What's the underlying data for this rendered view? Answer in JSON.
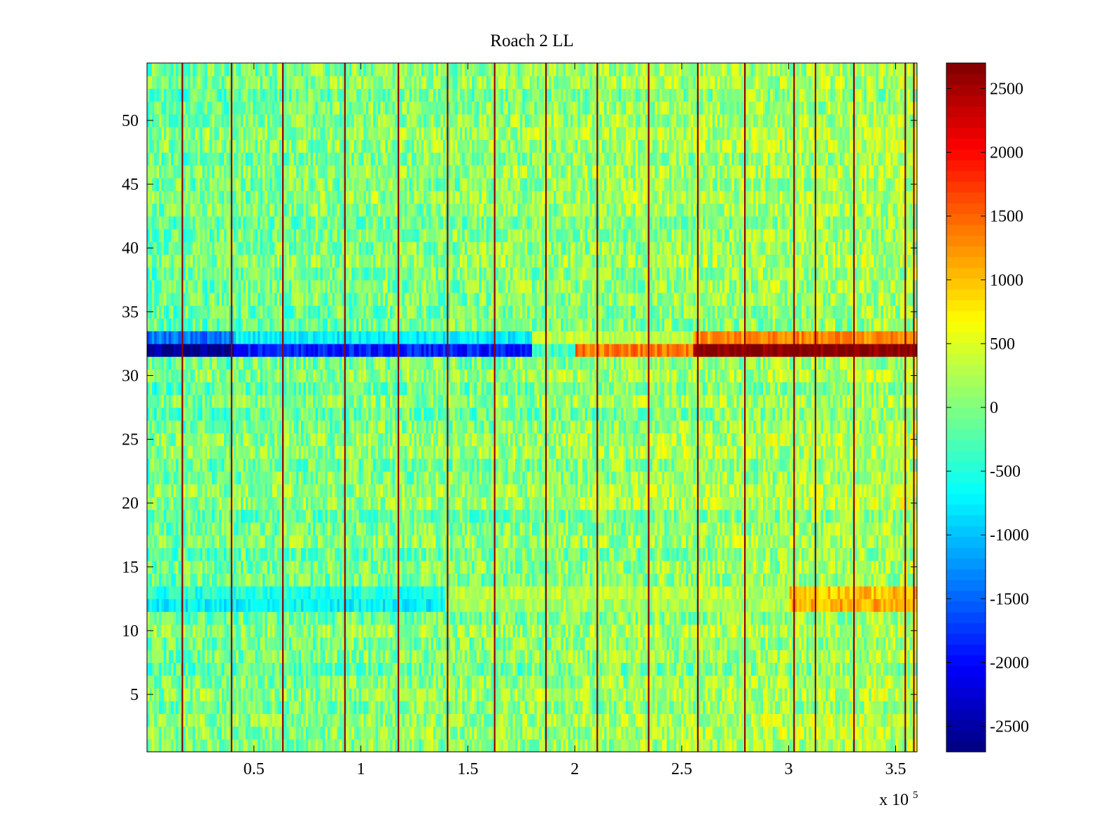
{
  "chart_data": {
    "type": "heatmap",
    "title": "Roach 2 LL",
    "xlabel": "",
    "ylabel": "",
    "x_multiplier_label": {
      "base": "x 10",
      "exponent": "5"
    },
    "xlim": [
      0,
      3.6
    ],
    "ylim": [
      0.5,
      54.5
    ],
    "x_ticks": [
      {
        "value": 0.5,
        "label": "0.5"
      },
      {
        "value": 1,
        "label": "1"
      },
      {
        "value": 1.5,
        "label": "1.5"
      },
      {
        "value": 2,
        "label": "2"
      },
      {
        "value": 2.5,
        "label": "2.5"
      },
      {
        "value": 3,
        "label": "3"
      },
      {
        "value": 3.5,
        "label": "3.5"
      }
    ],
    "y_ticks": [
      {
        "value": 5,
        "label": "5"
      },
      {
        "value": 10,
        "label": "10"
      },
      {
        "value": 15,
        "label": "15"
      },
      {
        "value": 20,
        "label": "20"
      },
      {
        "value": 25,
        "label": "25"
      },
      {
        "value": 30,
        "label": "30"
      },
      {
        "value": 35,
        "label": "35"
      },
      {
        "value": 40,
        "label": "40"
      },
      {
        "value": 45,
        "label": "45"
      },
      {
        "value": 50,
        "label": "50"
      }
    ],
    "colormap": "jet",
    "clim": [
      -2700,
      2700
    ],
    "colorbar_ticks": [
      {
        "value": 2500,
        "label": "2500"
      },
      {
        "value": 2000,
        "label": "2000"
      },
      {
        "value": 1500,
        "label": "1500"
      },
      {
        "value": 1000,
        "label": "1000"
      },
      {
        "value": 500,
        "label": "500"
      },
      {
        "value": 0,
        "label": "0"
      },
      {
        "value": -500,
        "label": "-500"
      },
      {
        "value": -1000,
        "label": "-1000"
      },
      {
        "value": -1500,
        "label": "-1500"
      },
      {
        "value": -2000,
        "label": "-2000"
      },
      {
        "value": -2500,
        "label": "-2500"
      }
    ],
    "rows": 54,
    "background_value_range": [
      -600,
      400
    ],
    "trend_per_unit_x": 90,
    "vertical_stripes_x": [
      0.165,
      0.395,
      0.635,
      0.925,
      1.175,
      1.405,
      1.625,
      1.865,
      2.105,
      2.345,
      2.575,
      2.795,
      3.025,
      3.125,
      3.305,
      3.545,
      3.585
    ],
    "stripe_value": 2600,
    "band_rows": [
      {
        "row": 32,
        "description": "strong band",
        "segments": [
          {
            "x_start": 0.0,
            "x_end": 0.4,
            "value": -2600
          },
          {
            "x_start": 0.4,
            "x_end": 1.8,
            "value": -1900
          },
          {
            "x_start": 1.8,
            "x_end": 2.0,
            "value": -400
          },
          {
            "x_start": 2.0,
            "x_end": 2.55,
            "value": 1400
          },
          {
            "x_start": 2.55,
            "x_end": 3.6,
            "value": 2700
          }
        ]
      },
      {
        "row": 33,
        "description": "partial band",
        "segments": [
          {
            "x_start": 0.0,
            "x_end": 0.4,
            "value": -1400
          },
          {
            "x_start": 0.4,
            "x_end": 1.8,
            "value": -700
          },
          {
            "x_start": 1.8,
            "x_end": 2.55,
            "value": 300
          },
          {
            "x_start": 2.55,
            "x_end": 3.6,
            "value": 1300
          }
        ]
      },
      {
        "row": 12,
        "description": "weak band",
        "segments": [
          {
            "x_start": 0.0,
            "x_end": 1.4,
            "value": -700
          },
          {
            "x_start": 1.4,
            "x_end": 3.0,
            "value": 200
          },
          {
            "x_start": 3.0,
            "x_end": 3.6,
            "value": 1100
          }
        ]
      },
      {
        "row": 13,
        "description": "weak band",
        "segments": [
          {
            "x_start": 0.0,
            "x_end": 1.4,
            "value": -500
          },
          {
            "x_start": 1.4,
            "x_end": 3.0,
            "value": 300
          },
          {
            "x_start": 3.0,
            "x_end": 3.6,
            "value": 1000
          }
        ]
      }
    ]
  }
}
